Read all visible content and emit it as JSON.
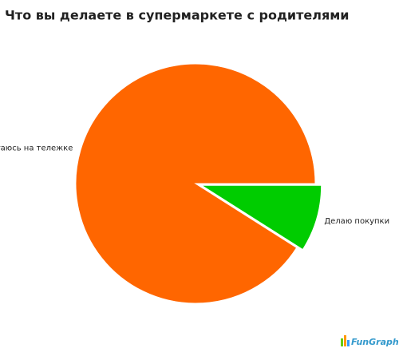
{
  "chart_data": {
    "type": "pie",
    "title": "Что вы делаете в супермаркете с родителями",
    "categories": [
      "Катаюсь на тележке",
      "Делаю покупки"
    ],
    "values": [
      91,
      9
    ],
    "colors": [
      "#ff6600",
      "#00cc00"
    ]
  },
  "branding": "FunGraph"
}
